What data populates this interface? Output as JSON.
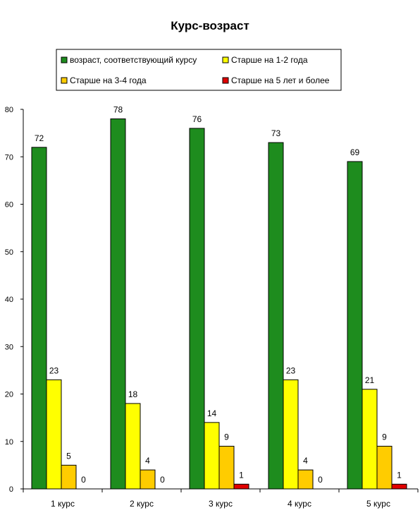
{
  "chart_data": {
    "type": "bar",
    "title": "Курс-возраст",
    "xlabel": "",
    "ylabel": "",
    "ylim": [
      0,
      80
    ],
    "yticks": [
      0,
      10,
      20,
      30,
      40,
      50,
      60,
      70,
      80
    ],
    "grid": false,
    "legend_position": "top",
    "categories": [
      "1 курс",
      "2 курс",
      "3 курс",
      "4 курс",
      "5 курс"
    ],
    "series": [
      {
        "name": "возраст, соответствующий курсу",
        "color": "#1e8c1e",
        "values": [
          72,
          78,
          76,
          73,
          69
        ]
      },
      {
        "name": "Старше на 1-2 года",
        "color": "#ffff00",
        "values": [
          23,
          18,
          14,
          23,
          21
        ]
      },
      {
        "name": "Старше на 3-4 года",
        "color": "#ffcc00",
        "values": [
          5,
          4,
          9,
          4,
          9
        ]
      },
      {
        "name": "Старше на 5 лет и более",
        "color": "#e00000",
        "values": [
          0,
          0,
          1,
          0,
          1
        ]
      }
    ]
  }
}
